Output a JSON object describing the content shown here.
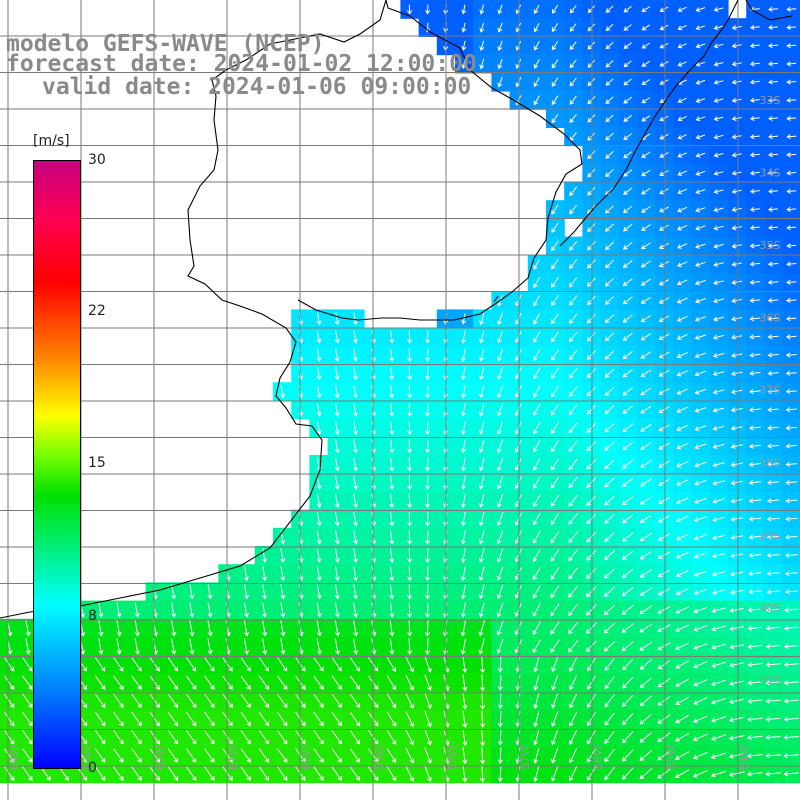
{
  "title": {
    "model": "modelo GEFS-WAVE (NCEP)",
    "forecast": "forecast date: 2024-01-02 12:00:00",
    "valid": "valid date: 2024-01-06 09:00:00"
  },
  "colorbar": {
    "unit": "[m/s]",
    "ticks": [
      "30",
      "22",
      "15",
      "8",
      "0"
    ],
    "colors": [
      "#0000ff",
      "#0080ff",
      "#00ffff",
      "#00e000",
      "#80ff00",
      "#ffff00",
      "#ff8000",
      "#ff0000",
      "#c80080"
    ]
  },
  "lat_labels": [
    "33S",
    "34S",
    "35S",
    "36S",
    "37S",
    "38S",
    "39S",
    "40S",
    "41S"
  ],
  "lon_labels": [
    "64W",
    "63W",
    "62W",
    "61W",
    "60W",
    "59W",
    "58W",
    "57W",
    "56W",
    "55W",
    "54W"
  ],
  "field": {
    "variable": "wind speed and direction",
    "prevailing_direction": "from the north-east / east",
    "range_min": 0,
    "range_max": 30
  }
}
